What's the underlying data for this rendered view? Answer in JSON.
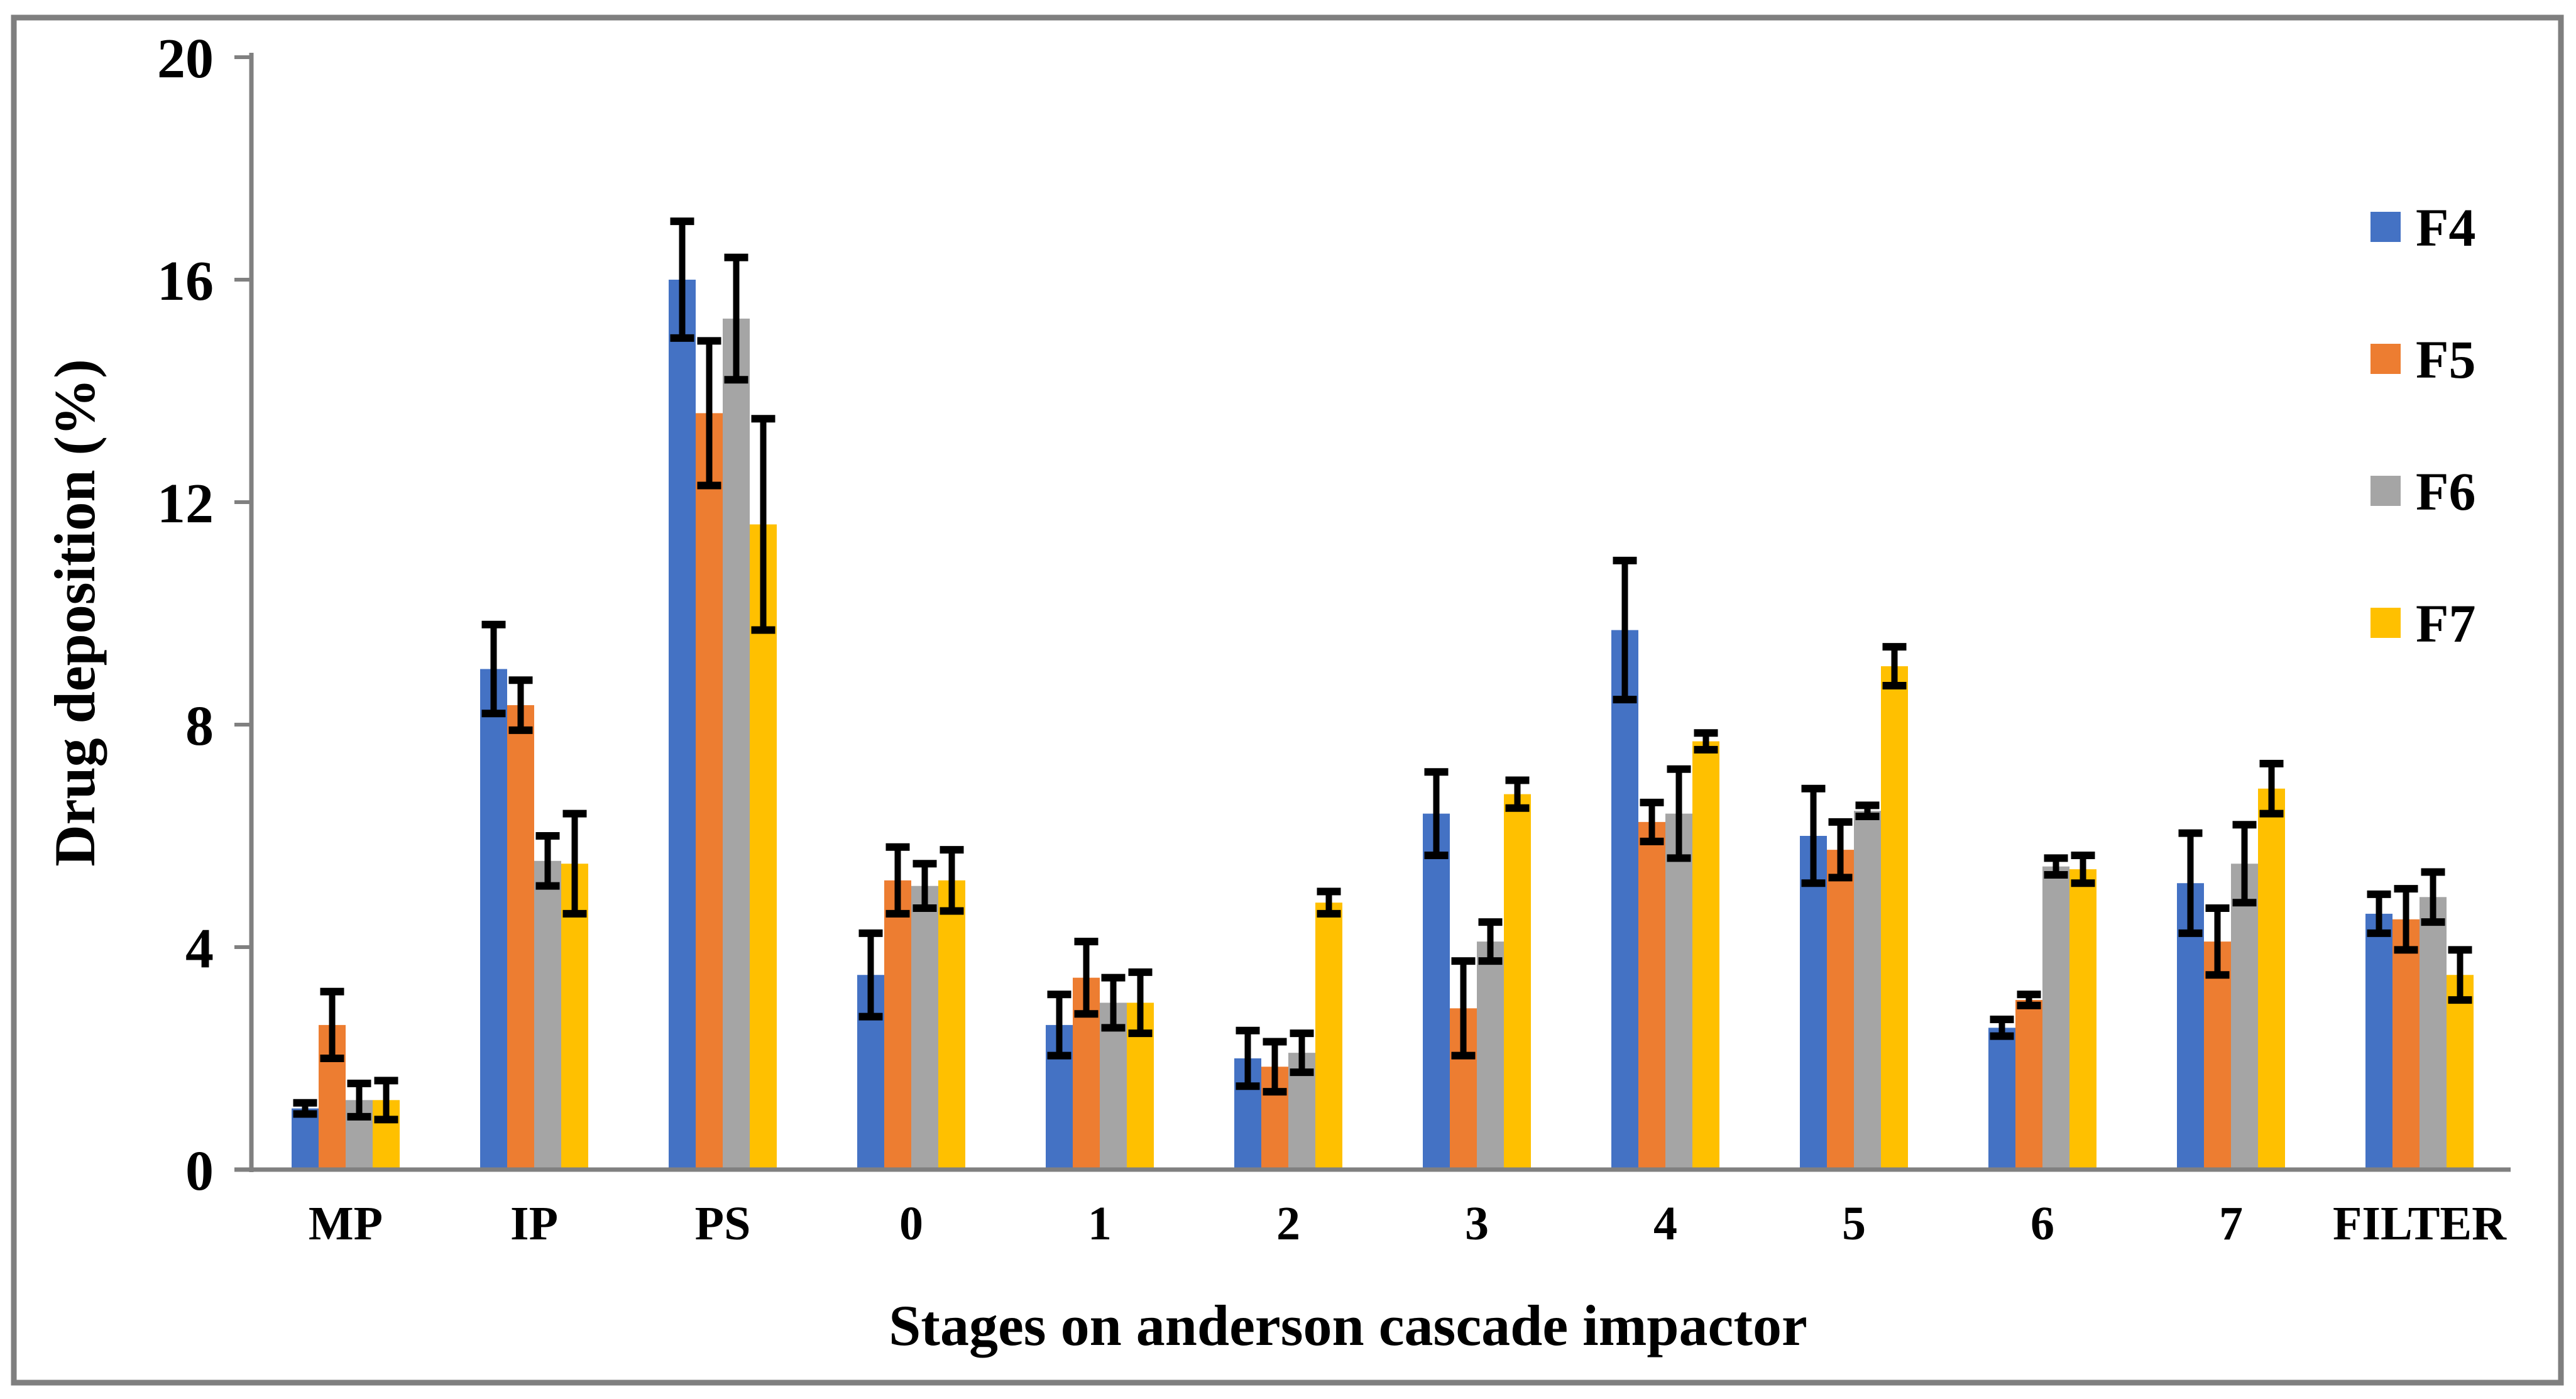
{
  "figure": {
    "background": "#FFFFFF",
    "border_color": "#7F7F7F",
    "axis_color": "#808080",
    "error_bar_color": "#000000"
  },
  "chart_data": {
    "type": "bar",
    "title": "",
    "xlabel": "Stages on anderson cascade impactor",
    "ylabel": "Drug deposition (%)",
    "categories": [
      "MP",
      "IP",
      "PS",
      "0",
      "1",
      "2",
      "3",
      "4",
      "5",
      "6",
      "7",
      "FILTER"
    ],
    "y_ticks": [
      0,
      4,
      8,
      12,
      16,
      20
    ],
    "ylim": [
      0,
      20
    ],
    "grid": false,
    "legend_position": "right",
    "error_bars": true,
    "series": [
      {
        "name": "F4",
        "color": "#4472C4",
        "values": [
          1.1,
          9.0,
          16.0,
          3.5,
          2.6,
          2.0,
          6.4,
          9.7,
          6.0,
          2.55,
          5.15,
          4.6
        ],
        "errors": [
          0.1,
          0.8,
          1.05,
          0.75,
          0.55,
          0.5,
          0.75,
          1.25,
          0.85,
          0.15,
          0.9,
          0.35
        ]
      },
      {
        "name": "F5",
        "color": "#ED7D31",
        "values": [
          2.6,
          8.35,
          13.6,
          5.2,
          3.45,
          1.85,
          2.9,
          6.25,
          5.75,
          3.05,
          4.1,
          4.5
        ],
        "errors": [
          0.6,
          0.45,
          1.3,
          0.6,
          0.65,
          0.45,
          0.85,
          0.35,
          0.5,
          0.1,
          0.6,
          0.55
        ]
      },
      {
        "name": "F6",
        "color": "#A5A5A5",
        "values": [
          1.25,
          5.55,
          15.3,
          5.1,
          3.0,
          2.1,
          4.1,
          6.4,
          6.45,
          5.45,
          5.5,
          4.9
        ],
        "errors": [
          0.3,
          0.45,
          1.1,
          0.4,
          0.45,
          0.35,
          0.35,
          0.8,
          0.1,
          0.15,
          0.7,
          0.45
        ]
      },
      {
        "name": "F7",
        "color": "#FFC000",
        "values": [
          1.25,
          5.5,
          11.6,
          5.2,
          3.0,
          4.8,
          6.75,
          7.7,
          9.05,
          5.4,
          6.85,
          3.5
        ],
        "errors": [
          0.35,
          0.9,
          1.9,
          0.55,
          0.55,
          0.2,
          0.25,
          0.15,
          0.35,
          0.25,
          0.45,
          0.45
        ]
      }
    ]
  }
}
